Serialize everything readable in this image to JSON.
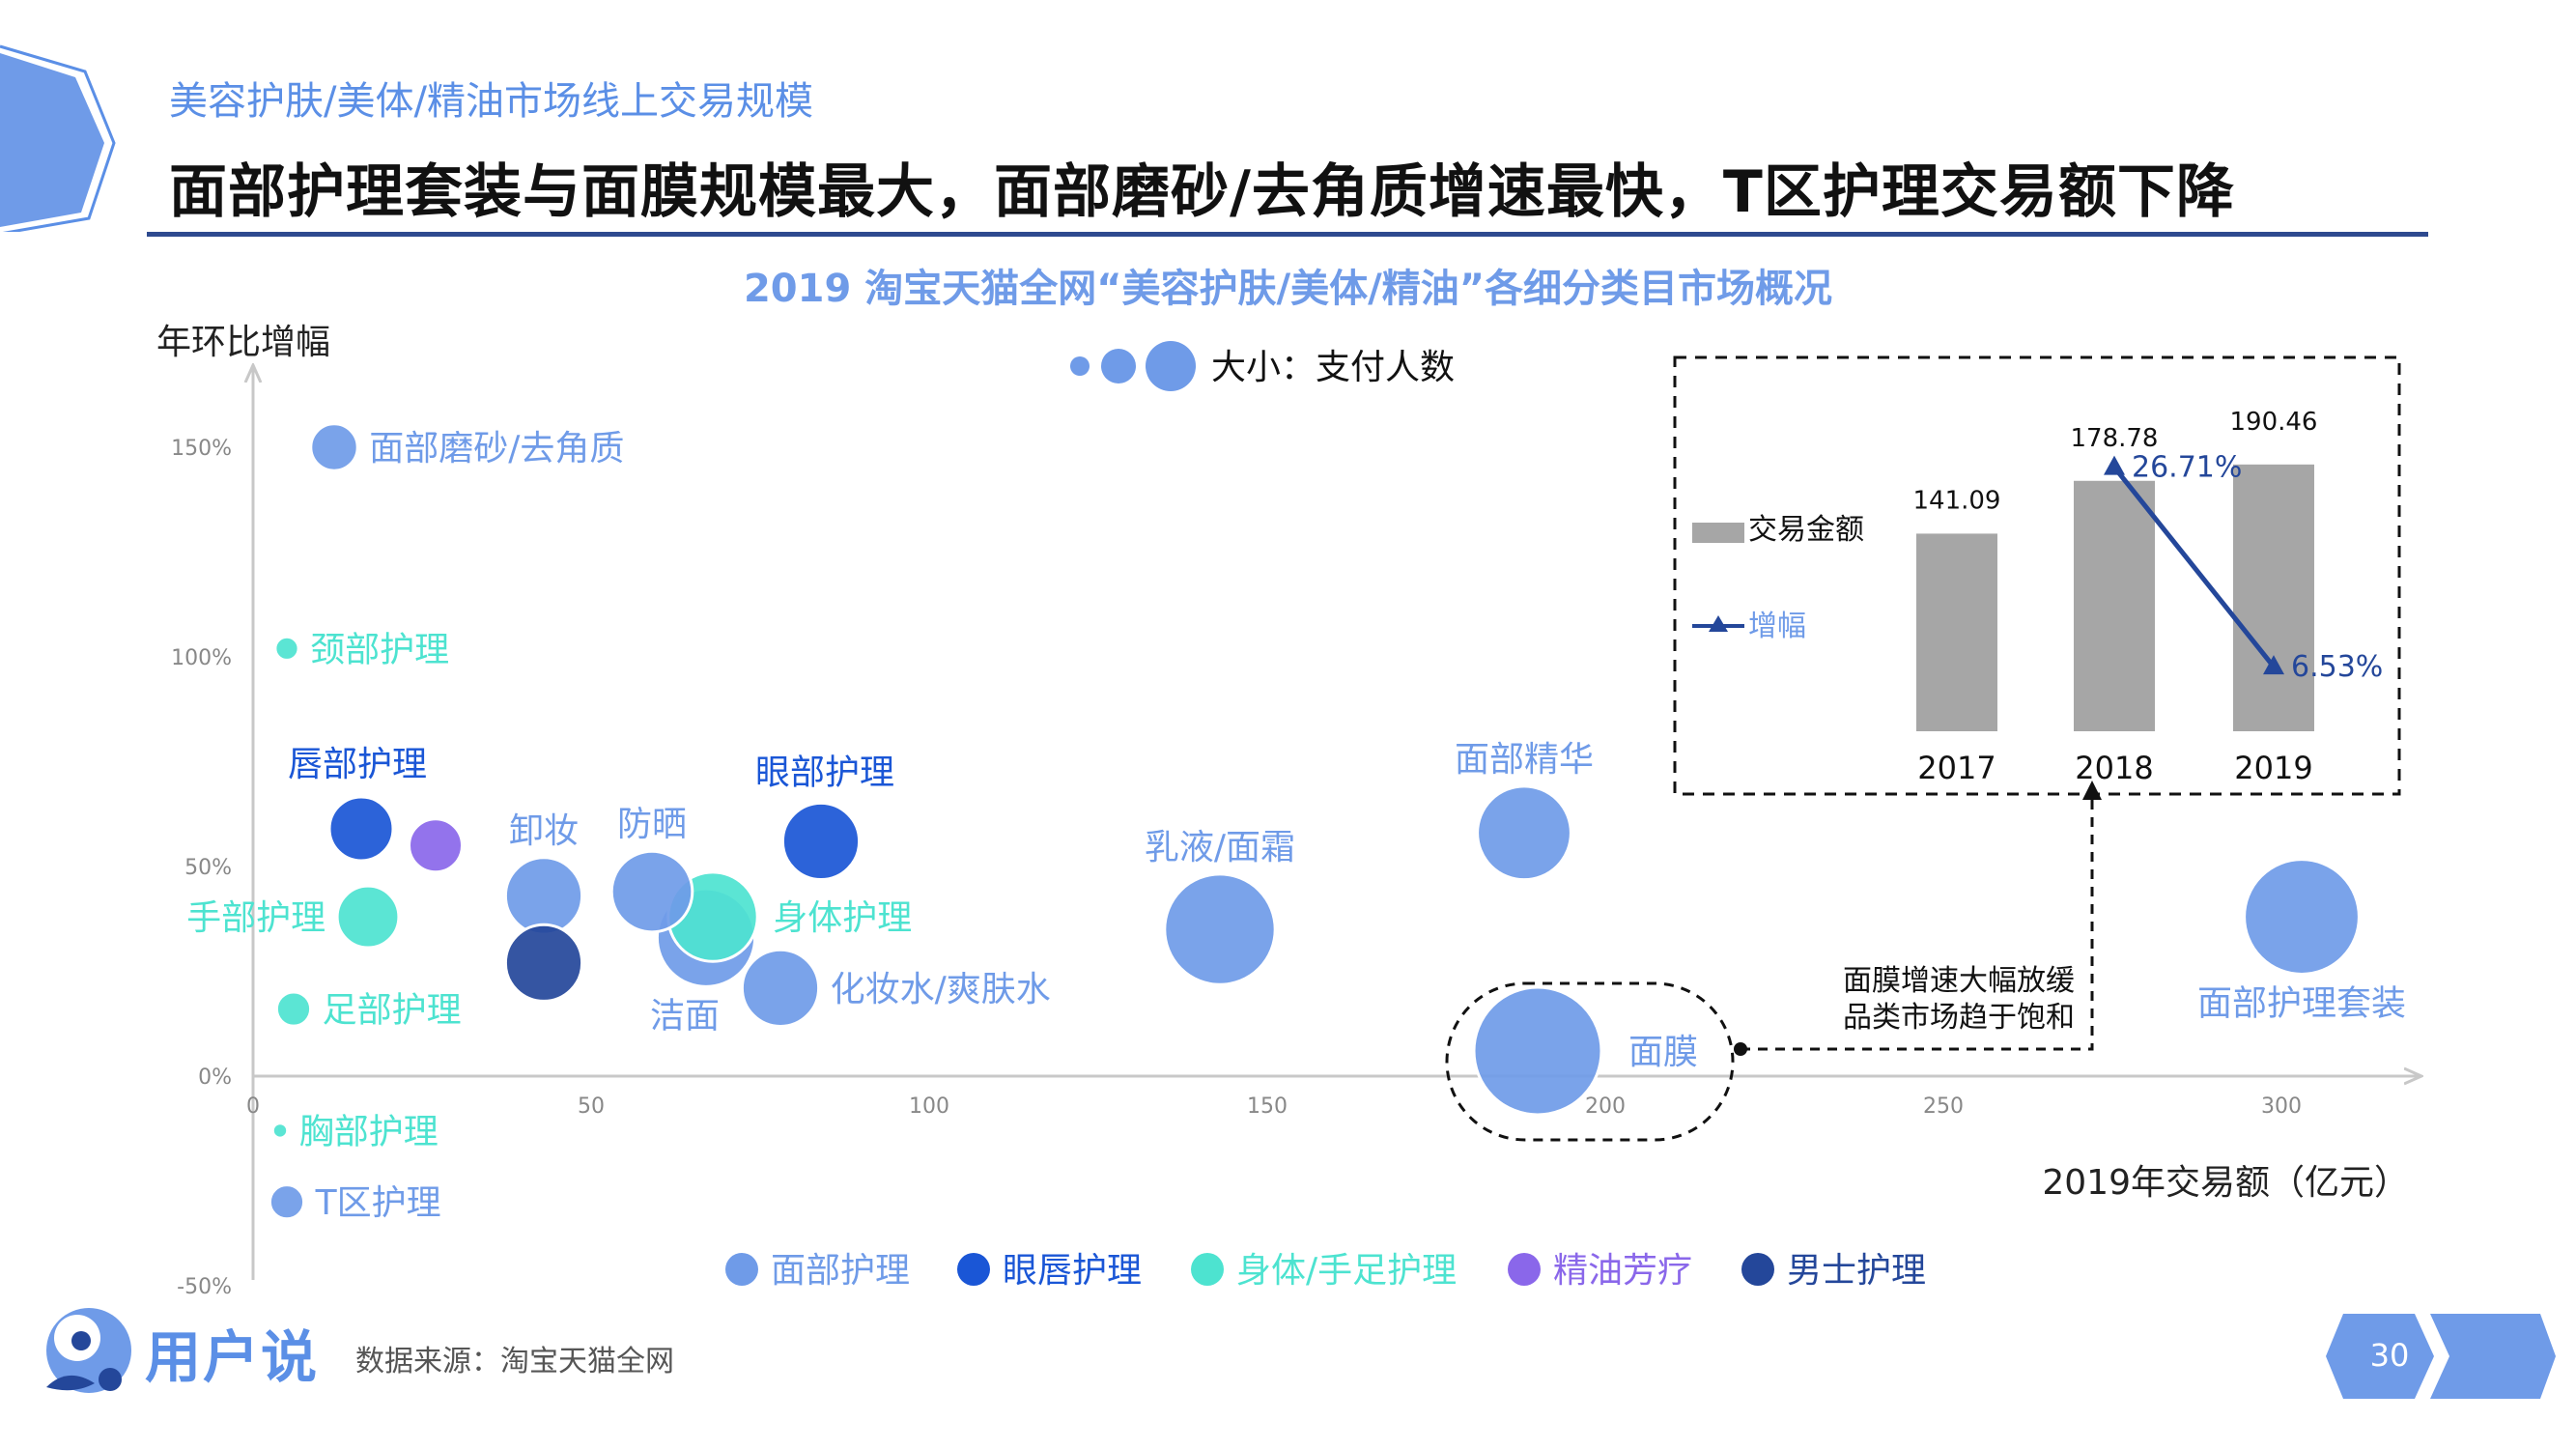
{
  "header": {
    "subtitle": "美容护肤/美体/精油市场线上交易规模",
    "headline": "面部护理套装与面膜规模最大，面部磨砂/去角质增速最快，T区护理交易额下降"
  },
  "chart_title": "2019 淘宝天猫全网“美容护肤/美体/精油”各细分类目市场概况",
  "footer": {
    "logo_text": "用户说",
    "source": "数据来源：淘宝天猫全网",
    "page_number": "30"
  },
  "colors": {
    "accent": "#5b8fe6",
    "rule": "#2e4a8f",
    "face_care": "#6f9be8",
    "eye_lip_care": "#1a56d6",
    "body_hand_foot": "#4de3d0",
    "essential_oil": "#8a67ea",
    "men_care": "#24479a",
    "bar": "#a6a6a6",
    "growth_line": "#24479a"
  },
  "chart_data": [
    {
      "type": "scatter",
      "ylabel": "年环比增幅",
      "xlabel": "2019年交易额（亿元）",
      "size_legend": "大小：支付人数",
      "xlim": [
        0,
        320
      ],
      "ylim": [
        -50,
        170
      ],
      "x_ticks": [
        "0",
        "50",
        "100",
        "150",
        "200",
        "250",
        "300"
      ],
      "x_tick_values": [
        0,
        50,
        100,
        150,
        200,
        250,
        300
      ],
      "y_ticks": [
        "150%",
        "100%",
        "50%",
        "0%",
        "-50%"
      ],
      "y_tick_values": [
        150,
        100,
        50,
        0,
        -50
      ],
      "legend": [
        {
          "name": "面部护理",
          "color": "#6f9be8"
        },
        {
          "name": "眼唇护理",
          "color": "#1a56d6"
        },
        {
          "name": "身体/手足护理",
          "color": "#4de3d0"
        },
        {
          "name": "精油芳疗",
          "color": "#8a67ea"
        },
        {
          "name": "男士护理",
          "color": "#24479a"
        }
      ],
      "points": [
        {
          "label": "面部磨砂/去角质",
          "category": "面部护理",
          "x": 12,
          "y": 150,
          "size": 1.1
        },
        {
          "label": "颈部护理",
          "category": "身体/手足护理",
          "x": 5,
          "y": 102,
          "size": 0.55
        },
        {
          "label": "唇部护理",
          "category": "眼唇护理",
          "x": 16,
          "y": 59,
          "size": 1.5
        },
        {
          "label": "",
          "category": "精油芳疗",
          "x": 27,
          "y": 55,
          "size": 1.25
        },
        {
          "label": "手部护理",
          "category": "身体/手足护理",
          "x": 17,
          "y": 38,
          "size": 1.45
        },
        {
          "label": "足部护理",
          "category": "身体/手足护理",
          "x": 6,
          "y": 16,
          "size": 0.8
        },
        {
          "label": "胸部护理",
          "category": "身体/手足护理",
          "x": 4,
          "y": -13,
          "size": 0.35
        },
        {
          "label": "T区护理",
          "category": "面部护理",
          "x": 5,
          "y": -30,
          "size": 0.8
        },
        {
          "label": "卸妆",
          "category": "面部护理",
          "x": 43,
          "y": 43,
          "size": 1.8
        },
        {
          "label": "",
          "category": "男士护理",
          "x": 43,
          "y": 27,
          "size": 1.8
        },
        {
          "label": "防晒",
          "category": "面部护理",
          "x": 59,
          "y": 44,
          "size": 1.9
        },
        {
          "label": "身体护理",
          "category": "身体/手足护理",
          "x": 68,
          "y": 38,
          "size": 2.1
        },
        {
          "label": "洁面",
          "category": "面部护理",
          "x": 67,
          "y": 33,
          "size": 2.3
        },
        {
          "label": "眼部护理",
          "category": "眼唇护理",
          "x": 84,
          "y": 56,
          "size": 1.8
        },
        {
          "label": "化妆水/爽肤水",
          "category": "面部护理",
          "x": 78,
          "y": 21,
          "size": 1.8
        },
        {
          "label": "乳液/面霜",
          "category": "面部护理",
          "x": 143,
          "y": 35,
          "size": 2.6
        },
        {
          "label": "面部精华",
          "category": "面部护理",
          "x": 188,
          "y": 58,
          "size": 2.2
        },
        {
          "label": "面膜",
          "category": "面部护理",
          "x": 190,
          "y": 6,
          "size": 3.0
        },
        {
          "label": "面部护理套装",
          "category": "面部护理",
          "x": 303,
          "y": 38,
          "size": 2.7
        }
      ],
      "annotation": {
        "lines": [
          "面膜增速大幅放缓",
          "品类市场趋于饱和"
        ]
      }
    },
    {
      "type": "bar",
      "series_label": "交易金额",
      "line_label": "增幅",
      "categories": [
        "2017",
        "2018",
        "2019"
      ],
      "values": [
        141.09,
        178.78,
        190.46
      ],
      "value_labels": [
        "141.09",
        "178.78",
        "190.46"
      ],
      "growth": [
        null,
        26.71,
        6.53
      ],
      "growth_labels": [
        "",
        "26.71%",
        "6.53%"
      ],
      "ylim": [
        0,
        200
      ]
    }
  ]
}
